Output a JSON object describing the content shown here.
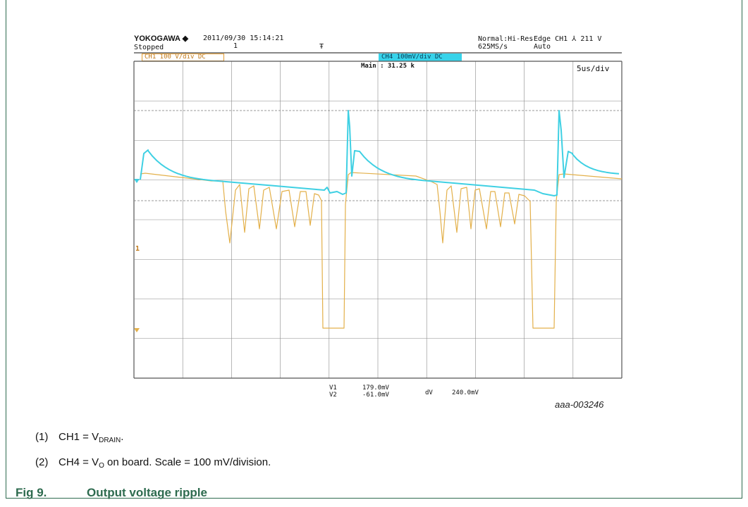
{
  "scope": {
    "brand": "YOKOGAWA ◆",
    "datetime": "2011/09/30 15:14:21",
    "state": "Stopped",
    "record": "1",
    "trigger_symbol": "Ŧ",
    "mode": "Normal:Hi-Res",
    "sample_rate": "625MS/s",
    "trigger_info": "Edge CH1 ⅄ 211 V",
    "trigger_mode": "Auto",
    "ch1_label": "CH1 100 V/div DC",
    "ch4_label": "CH4 100mV/div DC",
    "main_info": "Main : 31.25 k",
    "timebase": "5us/div",
    "ch1_marker": "1",
    "colors": {
      "ch1": "#e3b04a",
      "ch4": "#3fd0e3",
      "grid": "#8a8a8a",
      "frame": "#2e6b4f",
      "caption": "#2e6b4f"
    }
  },
  "measurements": {
    "v1_label": "V1",
    "v1_value": "179.0mV",
    "v2_label": "V2",
    "v2_value": "-61.0mV",
    "dv_label": "dV",
    "dv_value": "240.0mV"
  },
  "doc_id": "aaa-003246",
  "notes": {
    "n1_num": "(1)",
    "n1_text": "CH1 = V",
    "n1_sub": "DRAIN",
    "n1_end": ".",
    "n2_num": "(2)",
    "n2_text": "CH4 = V",
    "n2_sub": "O",
    "n2_end": " on board. Scale = 100 mV/division."
  },
  "caption": {
    "fig_no": "Fig 9.",
    "title": "Output voltage ripple"
  }
}
